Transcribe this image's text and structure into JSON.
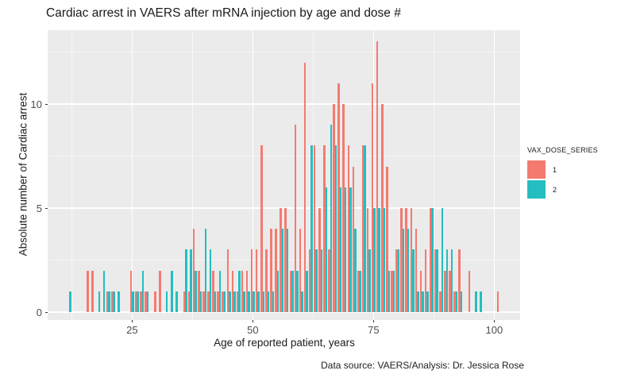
{
  "title": "Cardiac arrest in VAERS after mRNA injection by age and dose #",
  "caption": "Data source: VAERS/Analysis: Dr. Jessica Rose",
  "axes": {
    "x_label": "Age of reported patient, years",
    "y_label": "Absolute number of Cardiac arrest",
    "x_tick_labels": [
      "25",
      "50",
      "75",
      "100"
    ],
    "y_tick_labels": [
      "0",
      "5",
      "10"
    ]
  },
  "legend": {
    "title": "VAX_DOSE_SERIES",
    "items": [
      {
        "label": "1",
        "color": "#F47A70"
      },
      {
        "label": "2",
        "color": "#25BDC0"
      }
    ]
  },
  "chart_data": {
    "type": "bar",
    "title": "Cardiac arrest in VAERS after mRNA injection by age and dose #",
    "xlabel": "Age of reported patient, years",
    "ylabel": "Absolute number of Cardiac arrest",
    "caption": "Data source: VAERS/Analysis: Dr. Jessica Rose",
    "legend_title": "VAX_DOSE_SERIES",
    "legend_position": "right",
    "grid": true,
    "panel_background": "#EBEBEB",
    "xlim": [
      7.5,
      105.4
    ],
    "ylim": [
      0,
      13.5
    ],
    "x_ticks": [
      25,
      50,
      75,
      100
    ],
    "x_minor_ticks": [
      12.5,
      37.5,
      62.5,
      87.5
    ],
    "y_ticks": [
      0,
      5,
      10
    ],
    "y_minor_ticks": [
      2.5,
      7.5,
      12.5
    ],
    "x": [
      12,
      16,
      17,
      18,
      19,
      20,
      21,
      22,
      25,
      26,
      27,
      28,
      30,
      31,
      32,
      33,
      34,
      36,
      37,
      38,
      39,
      40,
      41,
      42,
      43,
      44,
      45,
      46,
      47,
      48,
      49,
      50,
      51,
      52,
      53,
      54,
      55,
      56,
      57,
      58,
      59,
      60,
      61,
      62,
      63,
      64,
      65,
      66,
      67,
      68,
      69,
      70,
      71,
      72,
      73,
      74,
      75,
      76,
      77,
      78,
      79,
      80,
      81,
      82,
      83,
      84,
      85,
      86,
      87,
      88,
      89,
      90,
      91,
      92,
      93,
      95,
      96,
      97,
      101
    ],
    "series": [
      {
        "name": "1",
        "color": "#F47A70",
        "values": [
          0,
          2,
          2,
          0,
          0,
          1,
          1,
          0,
          2,
          1,
          1,
          1,
          1,
          2,
          0,
          0,
          0,
          1,
          1,
          4,
          2,
          1,
          1,
          2,
          1,
          1,
          3,
          2,
          1,
          2,
          2,
          3,
          3,
          8,
          3,
          4,
          4,
          5,
          5,
          2,
          9,
          4,
          12,
          3,
          8,
          5,
          8,
          3,
          10,
          11,
          10,
          8,
          7,
          2,
          8,
          5,
          11,
          13,
          10,
          7,
          2,
          3,
          5,
          5,
          5,
          4,
          2,
          3,
          5,
          3,
          1,
          2,
          2,
          1,
          3,
          2,
          0,
          0,
          1
        ]
      },
      {
        "name": "2",
        "color": "#25BDC0",
        "values": [
          1,
          0,
          0,
          1,
          2,
          1,
          1,
          1,
          1,
          1,
          2,
          1,
          0,
          0,
          1,
          2,
          1,
          3,
          3,
          2,
          1,
          4,
          3,
          1,
          2,
          1,
          1,
          1,
          2,
          1,
          1,
          1,
          1,
          1,
          1,
          1,
          2,
          4,
          4,
          2,
          2,
          1,
          2,
          8,
          3,
          3,
          6,
          9,
          8,
          6,
          6,
          6,
          4,
          2,
          8,
          3,
          5,
          5,
          5,
          2,
          2,
          3,
          4,
          4,
          3,
          1,
          1,
          1,
          5,
          3,
          5,
          3,
          3,
          1,
          1,
          0,
          1,
          1,
          0
        ]
      }
    ]
  }
}
